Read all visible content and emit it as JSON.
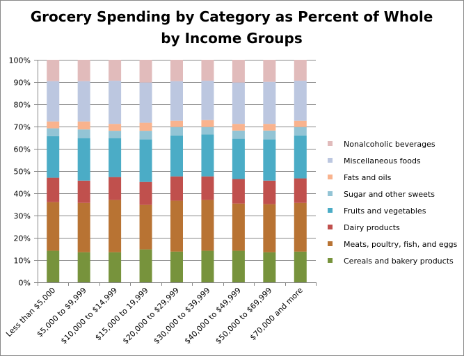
{
  "chart_data": {
    "type": "bar",
    "stacked": "percent",
    "title": [
      "Grocery Spending by Category as Percent of Whole",
      "by Income Groups"
    ],
    "xlabel": "",
    "ylabel": "",
    "ylim": [
      0,
      100
    ],
    "yticks": [
      "0%",
      "10%",
      "20%",
      "30%",
      "40%",
      "50%",
      "60%",
      "70%",
      "80%",
      "90%",
      "100%"
    ],
    "grid": true,
    "legend_position": "right",
    "categories": [
      "Less than $5,000",
      "$5,000 to $9,999",
      "$10,000 to $14,999",
      "$15,000 to 19,999",
      "$20,000 to $29,999",
      "$30,000 to $39,999",
      "$40,000 to $49,999",
      "$50,000 to $69,999",
      "$70,000 and more"
    ],
    "series": [
      {
        "name": "Cereals and bakery products",
        "color": "#77933C",
        "values": [
          14.2,
          13.5,
          13.5,
          14.8,
          13.8,
          14.2,
          14.2,
          13.5,
          13.8
        ]
      },
      {
        "name": "Meats, poultry, fish, and eggs",
        "color": "#B87333",
        "values": [
          21.8,
          22.2,
          23.5,
          20.0,
          22.9,
          22.8,
          21.2,
          21.6,
          21.9
        ]
      },
      {
        "name": "Dairy products",
        "color": "#C0504D",
        "values": [
          11.0,
          10.0,
          10.3,
          10.3,
          10.9,
          10.6,
          11.0,
          10.6,
          11.0
        ]
      },
      {
        "name": "Fruits and vegetables",
        "color": "#4BACC6",
        "values": [
          18.7,
          19.1,
          17.5,
          19.1,
          18.4,
          18.8,
          18.1,
          18.5,
          19.3
        ]
      },
      {
        "name": "Sugar and other sweets",
        "color": "#93C4D5",
        "values": [
          3.5,
          3.9,
          3.3,
          3.9,
          3.8,
          3.4,
          3.7,
          4.0,
          3.8
        ]
      },
      {
        "name": "Fats and oils",
        "color": "#F9B38E",
        "values": [
          3.1,
          3.6,
          3.1,
          3.6,
          2.8,
          3.1,
          3.0,
          3.0,
          2.8
        ]
      },
      {
        "name": "Miscellaneous foods",
        "color": "#BCC7E0",
        "values": [
          18.1,
          18.1,
          19.4,
          18.1,
          17.8,
          17.7,
          18.6,
          18.9,
          18.0
        ]
      },
      {
        "name": "Nonalcoholic beverages",
        "color": "#E1BBBB",
        "values": [
          9.6,
          9.6,
          9.4,
          10.2,
          9.6,
          9.4,
          10.2,
          9.9,
          9.4
        ]
      }
    ]
  }
}
